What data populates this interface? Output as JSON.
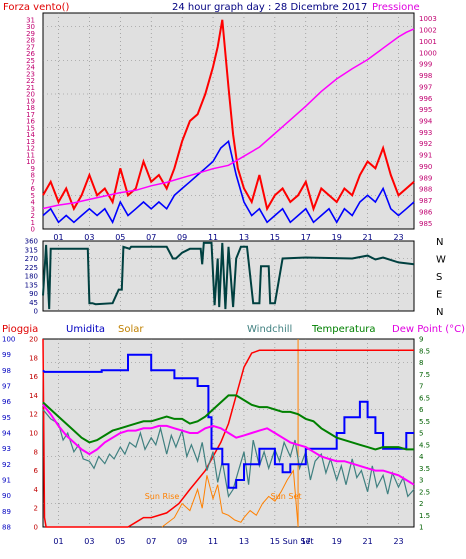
{
  "colors": {
    "wind": "#ff0000",
    "gust": "#ff0000",
    "gustavg": "#0000ff",
    "pressure": "#ff00ff",
    "direction": "#004040",
    "rain": "#ff0000",
    "humidity": "#0000ff",
    "solar": "#ff8000",
    "windchill": "#408080",
    "temperature": "#008000",
    "dewpoint": "#ff00ff",
    "panel_bg": "#e0e0e0",
    "grid": "#808080",
    "axis_blue": "#000080",
    "axis_pink": "#c00070"
  },
  "chart_data": [
    {
      "type": "line",
      "title": "24 hour graph day : 28 Dicembre 2017",
      "left_label": "Forza vento()",
      "right_label": "Pressione",
      "x_ticks": [
        "01",
        "03",
        "05",
        "07",
        "09",
        "11",
        "13",
        "15",
        "17",
        "19",
        "21",
        "23"
      ],
      "left_ticks": [
        0,
        1,
        2,
        3,
        4,
        5,
        6,
        7,
        8,
        9,
        10,
        11,
        12,
        13,
        14,
        15,
        16,
        17,
        18,
        19,
        20,
        21,
        22,
        23,
        24,
        25,
        26,
        27,
        28,
        29,
        30,
        31
      ],
      "right_ticks": [
        985,
        986,
        987,
        988,
        989,
        990,
        991,
        992,
        993,
        994,
        995,
        996,
        997,
        998,
        999,
        1000,
        1001,
        1002,
        1003
      ],
      "ylim_left": [
        0,
        32
      ],
      "ylim_right": [
        984.5,
        1003.5
      ],
      "xlim": [
        0,
        24
      ],
      "series": [
        {
          "key": "gust",
          "x": [
            0,
            0.5,
            1,
            1.5,
            2,
            2.5,
            3,
            3.5,
            4,
            4.5,
            5,
            5.5,
            6,
            6.5,
            7,
            7.5,
            8,
            8.5,
            9,
            9.5,
            10,
            10.5,
            11,
            11.3,
            11.6,
            12,
            12.3,
            12.6,
            13,
            13.5,
            14,
            14.5,
            15,
            15.5,
            16,
            16.5,
            17,
            17.5,
            18,
            18.5,
            19,
            19.5,
            20,
            20.5,
            21,
            21.5,
            22,
            22.5,
            23,
            23.5,
            24
          ],
          "y": [
            5,
            7,
            4,
            6,
            3,
            5,
            8,
            5,
            6,
            4,
            9,
            5,
            6,
            10,
            7,
            8,
            6,
            9,
            13,
            16,
            17,
            20,
            24,
            27,
            31,
            21,
            14,
            9,
            6,
            4,
            8,
            3,
            5,
            6,
            4,
            5,
            7,
            3,
            6,
            5,
            4,
            6,
            5,
            8,
            10,
            9,
            12,
            8,
            5,
            6,
            7
          ]
        },
        {
          "key": "gustavg",
          "x": [
            0,
            0.5,
            1,
            1.5,
            2,
            2.5,
            3,
            3.5,
            4,
            4.5,
            5,
            5.5,
            6,
            6.5,
            7,
            7.5,
            8,
            8.5,
            9,
            9.5,
            10,
            10.5,
            11,
            11.5,
            12,
            12.5,
            13,
            13.5,
            14,
            14.5,
            15,
            15.5,
            16,
            16.5,
            17,
            17.5,
            18,
            18.5,
            19,
            19.5,
            20,
            20.5,
            21,
            21.5,
            22,
            22.5,
            23,
            23.5,
            24
          ],
          "y": [
            2,
            3,
            1,
            2,
            1,
            2,
            3,
            2,
            3,
            1,
            4,
            2,
            3,
            4,
            3,
            4,
            3,
            5,
            6,
            7,
            8,
            9,
            10,
            12,
            13,
            8,
            4,
            2,
            3,
            1,
            2,
            3,
            1,
            2,
            3,
            1,
            2,
            3,
            1,
            3,
            2,
            4,
            5,
            4,
            6,
            3,
            2,
            3,
            4
          ]
        },
        {
          "key": "pressure",
          "x": [
            0,
            1,
            2,
            3,
            4,
            5,
            6,
            7,
            8,
            9,
            10,
            11,
            12,
            13,
            14,
            15,
            16,
            17,
            18,
            19,
            20,
            21,
            22,
            23,
            23.5,
            24
          ],
          "y": [
            986.3,
            986.6,
            986.8,
            987.1,
            987.4,
            987.7,
            987.9,
            988.3,
            988.6,
            989.0,
            989.4,
            989.8,
            990.1,
            990.9,
            991.7,
            992.9,
            994.1,
            995.3,
            996.6,
            997.7,
            998.6,
            999.4,
            1000.4,
            1001.4,
            1001.8,
            1002.1
          ]
        }
      ]
    },
    {
      "type": "line",
      "x_ticks": [
        "01",
        "03",
        "05",
        "07",
        "09",
        "11",
        "13",
        "15",
        "17",
        "19",
        "21",
        "23"
      ],
      "left_ticks": [
        0,
        45,
        90,
        135,
        180,
        225,
        270,
        315,
        360
      ],
      "right_ticks": [
        "N",
        "W",
        "S",
        "E",
        "N"
      ],
      "ylim": [
        0,
        360
      ],
      "xlim": [
        0,
        24
      ],
      "series": [
        {
          "key": "direction",
          "x": [
            0,
            0.2,
            0.4,
            0.5,
            2.9,
            3.0,
            3.2,
            3.4,
            4.5,
            4.9,
            5.1,
            5.2,
            5.6,
            5.7,
            8.0,
            8.4,
            8.6,
            9.0,
            9.5,
            10.2,
            10.3,
            10.4,
            10.9,
            11.1,
            11.3,
            11.4,
            11.6,
            11.8,
            12.0,
            12.3,
            12.5,
            12.8,
            13.2,
            13.6,
            14.0,
            14.1,
            14.6,
            14.7,
            15.0,
            15.5,
            17.0,
            20.0,
            21.0,
            21.5,
            22.0,
            23.0,
            24.0
          ],
          "y": [
            80,
            340,
            10,
            320,
            320,
            40,
            40,
            35,
            40,
            110,
            110,
            330,
            320,
            330,
            330,
            270,
            270,
            300,
            320,
            320,
            240,
            350,
            350,
            30,
            270,
            20,
            350,
            10,
            330,
            20,
            270,
            330,
            330,
            40,
            40,
            230,
            230,
            40,
            40,
            270,
            275,
            270,
            285,
            265,
            275,
            250,
            240
          ]
        }
      ]
    },
    {
      "type": "line",
      "labels": [
        "Pioggia",
        "Umidita",
        "Solar",
        "Windchill",
        "Temperatura",
        "Dew Point (°C)"
      ],
      "x_ticks": [
        "01",
        "03",
        "05",
        "07",
        "09",
        "11",
        "13",
        "15",
        "Sun Set",
        "17",
        "19",
        "21",
        "23"
      ],
      "humidity_ticks": [
        88,
        89,
        90,
        91,
        92,
        93,
        94,
        95,
        96,
        97,
        98,
        99,
        100
      ],
      "rain_ticks": [
        0,
        2,
        4,
        6,
        8,
        10,
        12,
        14,
        16,
        18,
        20
      ],
      "temp_ticks": [
        1,
        1.5,
        2,
        2.5,
        3,
        3.5,
        4,
        4.5,
        5,
        5.5,
        6,
        6.5,
        7,
        7.5,
        8,
        8.5,
        9
      ],
      "annotations": [
        "Sun Rise",
        "Sun Set"
      ],
      "sunrise": 7.7,
      "sunset": 16.5,
      "xlim": [
        0,
        24
      ],
      "ylim_humidity": [
        88,
        100
      ],
      "ylim_rain": [
        0,
        20
      ],
      "ylim_temp": [
        1,
        9
      ],
      "series": [
        {
          "key": "rain",
          "axis": "rain",
          "x": [
            0,
            0.1,
            0.2,
            0.6,
            0.8,
            1,
            5.5,
            6,
            6.5,
            7,
            8,
            8.8,
            9.5,
            10,
            10.5,
            11,
            11.5,
            12,
            12.5,
            13,
            13.5,
            14,
            24
          ],
          "y": [
            20,
            1,
            0,
            0,
            0,
            0,
            0,
            0.5,
            1,
            1,
            1.5,
            2.5,
            4,
            5,
            6,
            7.5,
            9,
            11,
            14,
            17,
            18.5,
            18.8,
            18.8
          ]
        },
        {
          "key": "humidity",
          "axis": "humidity",
          "x": [
            0,
            0.1,
            3.8,
            3.8,
            5.5,
            5.5,
            7,
            7,
            8.5,
            8.5,
            10,
            10,
            10.7,
            10.7,
            10.9,
            10.9,
            11.6,
            11.6,
            12,
            12,
            12.5,
            12.5,
            13,
            13,
            14,
            14,
            15,
            15,
            15.5,
            15.5,
            16,
            16,
            17,
            17,
            19,
            19,
            19.5,
            19.5,
            20.5,
            20.5,
            21,
            21,
            21.5,
            21.5,
            22,
            22,
            23.5,
            23.5,
            24
          ],
          "y": [
            98,
            97.9,
            97.9,
            98,
            98,
            99,
            99,
            98,
            98,
            97.5,
            97.5,
            97,
            97,
            95,
            95,
            93,
            93,
            92,
            92,
            90.5,
            90.5,
            91,
            91,
            92,
            92,
            93,
            93,
            92,
            92,
            91.5,
            91.5,
            92,
            92,
            93,
            93,
            94,
            94,
            95,
            95,
            96,
            96,
            95,
            95,
            94,
            94,
            93,
            93,
            94,
            94
          ]
        },
        {
          "key": "solar",
          "axis": "temp",
          "x": [
            7.7,
            8.5,
            9,
            9.5,
            10,
            10.3,
            10.6,
            11,
            11.3,
            11.6,
            12,
            12.4,
            12.8,
            13,
            13.4,
            13.8,
            14.2,
            14.6,
            15,
            15.4,
            15.8,
            16.2,
            16.5
          ],
          "y": [
            1.0,
            1.4,
            2.0,
            1.7,
            2.6,
            1.8,
            3.2,
            2.2,
            2.8,
            1.6,
            1.5,
            1.3,
            1.2,
            1.4,
            1.7,
            1.5,
            2.0,
            2.3,
            2.1,
            2.5,
            3.0,
            3.4,
            1.0
          ]
        },
        {
          "key": "windchill",
          "axis": "temp",
          "x": [
            0,
            0.5,
            1,
            1.3,
            1.6,
            2,
            2.3,
            2.6,
            3,
            3.3,
            3.6,
            4,
            4.3,
            4.6,
            5,
            5.3,
            5.6,
            6,
            6.3,
            6.6,
            7,
            7.3,
            7.6,
            8,
            8.3,
            8.6,
            9,
            9.3,
            9.6,
            10,
            10.3,
            10.6,
            11,
            11.3,
            11.6,
            12,
            12.3,
            12.6,
            13,
            13.3,
            13.6,
            14,
            14.3,
            14.6,
            15,
            15.3,
            15.6,
            16,
            16.3,
            16.6,
            17,
            17.3,
            17.6,
            18,
            18.3,
            18.6,
            19,
            19.3,
            19.6,
            20,
            20.3,
            20.6,
            21,
            21.3,
            21.6,
            22,
            22.3,
            22.6,
            23,
            23.3,
            23.6,
            24
          ],
          "y": [
            6,
            5.6,
            5.4,
            4.7,
            5.0,
            4.2,
            4.5,
            3.9,
            3.8,
            3.5,
            4.0,
            3.7,
            4.1,
            3.9,
            4.4,
            4.1,
            4.6,
            4.4,
            5.0,
            4.3,
            4.8,
            4.5,
            5.2,
            4.1,
            4.9,
            4.4,
            5.1,
            4.0,
            4.5,
            3.8,
            4.6,
            3.4,
            4.2,
            2.9,
            3.8,
            2.3,
            2.6,
            3.3,
            4.2,
            2.8,
            4.7,
            3.6,
            4.2,
            3.5,
            4.3,
            3.8,
            4.6,
            4.0,
            4.7,
            3.5,
            4.2,
            3.0,
            3.8,
            4.1,
            3.3,
            3.9,
            3.0,
            3.6,
            2.8,
            3.9,
            3.1,
            3.4,
            2.5,
            3.6,
            2.7,
            3.2,
            2.4,
            3.3,
            2.7,
            3.1,
            2.3,
            2.6
          ]
        },
        {
          "key": "temperature",
          "axis": "temp",
          "x": [
            0,
            0.5,
            1,
            1.5,
            2,
            2.5,
            3,
            3.5,
            4,
            4.5,
            5,
            5.5,
            6,
            6.5,
            7,
            7.5,
            8,
            8.5,
            9,
            9.5,
            10,
            10.5,
            11,
            11.5,
            12,
            12.5,
            13,
            13.5,
            14,
            14.5,
            15,
            15.5,
            16,
            16.5,
            17,
            17.5,
            18,
            18.5,
            19,
            19.5,
            20,
            20.5,
            21,
            21.5,
            22,
            22.5,
            23,
            23.5,
            24
          ],
          "y": [
            6.3,
            6.0,
            5.7,
            5.4,
            5.1,
            4.8,
            4.6,
            4.7,
            4.9,
            5.1,
            5.2,
            5.3,
            5.4,
            5.5,
            5.5,
            5.6,
            5.7,
            5.6,
            5.6,
            5.4,
            5.5,
            5.7,
            6.0,
            6.3,
            6.6,
            6.6,
            6.4,
            6.2,
            6.1,
            6.1,
            6.0,
            5.9,
            5.9,
            5.8,
            5.6,
            5.5,
            5.2,
            5.0,
            4.8,
            4.7,
            4.6,
            4.5,
            4.4,
            4.3,
            4.4,
            4.4,
            4.4,
            4.3,
            4.3
          ]
        },
        {
          "key": "dewpoint",
          "axis": "temp",
          "x": [
            0,
            0.5,
            1,
            1.5,
            2,
            2.5,
            3,
            3.5,
            4,
            4.5,
            5,
            5.5,
            6,
            6.5,
            7,
            7.5,
            8,
            8.5,
            9,
            9.5,
            10,
            10.5,
            11,
            11.5,
            12,
            12.5,
            13,
            13.5,
            14,
            14.5,
            15,
            15.5,
            16,
            16.5,
            17,
            17.5,
            18,
            18.5,
            19,
            19.5,
            20,
            20.5,
            21,
            21.5,
            22,
            22.5,
            23,
            23.5,
            24
          ],
          "y": [
            6.2,
            5.8,
            5.3,
            4.9,
            4.6,
            4.3,
            4.1,
            4.3,
            4.6,
            4.8,
            5.0,
            5.1,
            5.1,
            5.2,
            5.2,
            5.3,
            5.3,
            5.2,
            5.1,
            5.0,
            5.0,
            5.2,
            5.3,
            5.2,
            5.0,
            4.8,
            4.9,
            5.0,
            5.1,
            5.2,
            5.0,
            4.8,
            4.6,
            4.5,
            4.4,
            4.2,
            4.0,
            3.9,
            3.8,
            3.8,
            3.7,
            3.6,
            3.5,
            3.4,
            3.4,
            3.3,
            3.2,
            3.0,
            2.8
          ]
        }
      ]
    }
  ]
}
